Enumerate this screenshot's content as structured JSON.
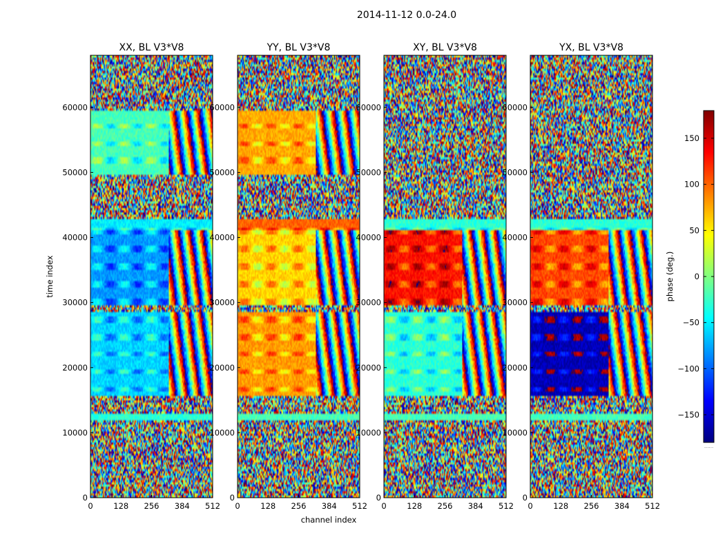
{
  "chart_data": {
    "type": "heatmap",
    "suptitle": "2014-11-12 0.0-24.0",
    "xlabel": "channel index",
    "ylabel": "time index",
    "xlim": [
      0,
      512
    ],
    "ylim": [
      0,
      68000
    ],
    "x_ticks": [
      0,
      128,
      256,
      384,
      512
    ],
    "y_ticks": [
      0,
      10000,
      20000,
      30000,
      40000,
      50000,
      60000
    ],
    "panels": [
      {
        "title": "XX, BL V3*V8",
        "segments": [
          {
            "t": [
              0,
              12000
            ],
            "base": null
          },
          {
            "t": [
              12000,
              13000
            ],
            "base": -30
          },
          {
            "t": [
              13000,
              15500
            ],
            "base": null
          },
          {
            "t": [
              15500,
              28500
            ],
            "base": -60,
            "ch_end": 330
          },
          {
            "t": [
              28500,
              29500
            ],
            "base": null
          },
          {
            "t": [
              29500,
              41000
            ],
            "base": -80,
            "ch_end": 330
          },
          {
            "t": [
              41000,
              43000
            ],
            "base": -50
          },
          {
            "t": [
              43000,
              49500
            ],
            "base": null
          },
          {
            "t": [
              49500,
              59500
            ],
            "base": -20,
            "ch_end": 330
          },
          {
            "t": [
              59500,
              68000
            ],
            "base": null
          }
        ]
      },
      {
        "title": "YY, BL V3*V8",
        "segments": [
          {
            "t": [
              0,
              12000
            ],
            "base": null
          },
          {
            "t": [
              12000,
              13000
            ],
            "base": -20
          },
          {
            "t": [
              13000,
              15500
            ],
            "base": null
          },
          {
            "t": [
              15500,
              28500
            ],
            "base": 80,
            "ch_end": 330
          },
          {
            "t": [
              28500,
              29500
            ],
            "base": null
          },
          {
            "t": [
              29500,
              41000
            ],
            "base": 60,
            "ch_end": 330
          },
          {
            "t": [
              41000,
              43000
            ],
            "base": 100
          },
          {
            "t": [
              43000,
              49500
            ],
            "base": null
          },
          {
            "t": [
              49500,
              59500
            ],
            "base": 75,
            "ch_end": 330
          },
          {
            "t": [
              59500,
              68000
            ],
            "base": null
          }
        ]
      },
      {
        "title": "XY, BL V3*V8",
        "segments": [
          {
            "t": [
              0,
              12000
            ],
            "base": null
          },
          {
            "t": [
              12000,
              13000
            ],
            "base": -20
          },
          {
            "t": [
              13000,
              15500
            ],
            "base": null
          },
          {
            "t": [
              15500,
              28500
            ],
            "base": -30,
            "ch_end": 330
          },
          {
            "t": [
              28500,
              29500
            ],
            "base": null
          },
          {
            "t": [
              29500,
              41000
            ],
            "base": 130,
            "ch_end": 330
          },
          {
            "t": [
              41000,
              43000
            ],
            "base": -30
          },
          {
            "t": [
              43000,
              59500
            ],
            "base": null
          },
          {
            "t": [
              59500,
              68000
            ],
            "base": null
          }
        ]
      },
      {
        "title": "YX, BL V3*V8",
        "segments": [
          {
            "t": [
              0,
              12000
            ],
            "base": null
          },
          {
            "t": [
              12000,
              13000
            ],
            "base": -20
          },
          {
            "t": [
              13000,
              15500
            ],
            "base": null
          },
          {
            "t": [
              15500,
              28500
            ],
            "base": -160,
            "ch_end": 330
          },
          {
            "t": [
              28500,
              29500
            ],
            "base": null
          },
          {
            "t": [
              29500,
              41000
            ],
            "base": 110,
            "ch_end": 330
          },
          {
            "t": [
              41000,
              43000
            ],
            "base": -30
          },
          {
            "t": [
              43000,
              59500
            ],
            "base": null
          },
          {
            "t": [
              59500,
              68000
            ],
            "base": null
          }
        ]
      }
    ],
    "colorbar": {
      "label": "phase (deg.)",
      "range": [
        -180,
        180
      ],
      "ticks": [
        -150,
        -100,
        -50,
        0,
        50,
        100,
        150
      ],
      "tick_labels": [
        "−150",
        "−100",
        "−50",
        "0",
        "50",
        "100",
        "150"
      ],
      "colormap": "jet",
      "footnote": "......"
    }
  }
}
